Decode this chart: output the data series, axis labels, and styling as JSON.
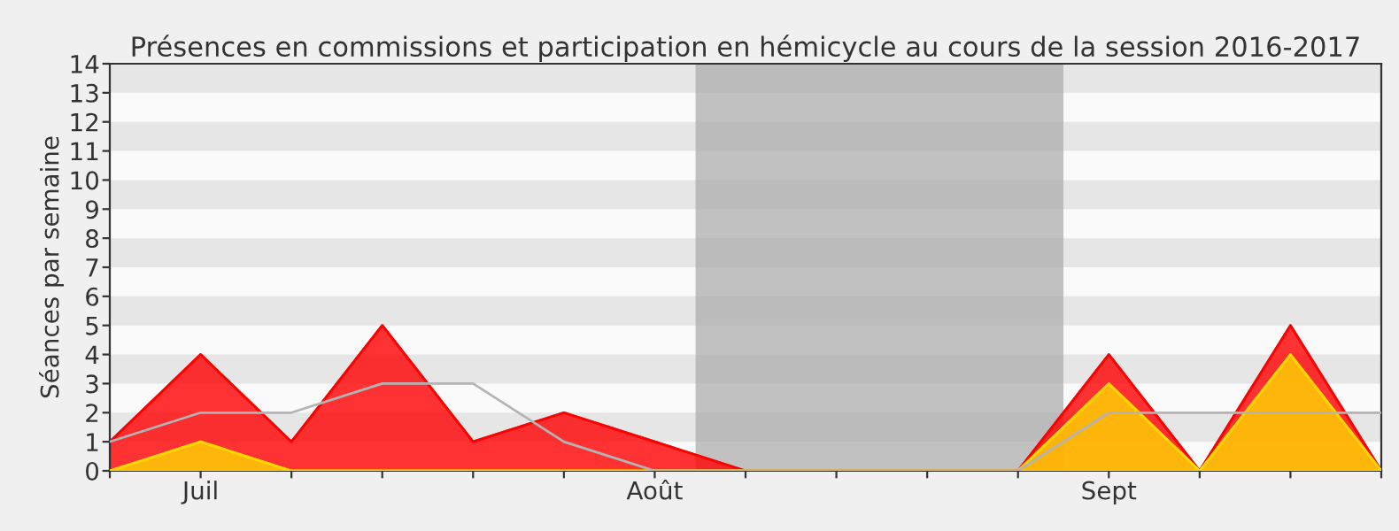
{
  "chart_data": {
    "type": "area",
    "title": "Présences en commissions et participation en hémicycle au cours de la session 2016-2017",
    "ylabel": "Séances par semaine",
    "categories": [
      null,
      "Juil",
      null,
      null,
      null,
      null,
      "Août",
      null,
      null,
      null,
      null,
      "Sept",
      null,
      null,
      null
    ],
    "ylim": [
      0,
      14
    ],
    "yticks": [
      0,
      1,
      2,
      3,
      4,
      5,
      6,
      7,
      8,
      9,
      10,
      11,
      12,
      13,
      14
    ],
    "series": [
      {
        "color": "#ff0000",
        "values": [
          1,
          4,
          1,
          5,
          1,
          2,
          1,
          0,
          0,
          0,
          0,
          4,
          0,
          5,
          0
        ]
      },
      {
        "color": "#ffd700",
        "values": [
          0,
          1,
          0,
          0,
          0,
          0,
          0,
          0,
          0,
          0,
          0,
          3,
          0,
          4,
          0
        ]
      },
      {
        "type": "line",
        "color": "#b4b4b4",
        "values": [
          1,
          2,
          2,
          3,
          3,
          1,
          0,
          0,
          0,
          0,
          0,
          2,
          2,
          2,
          2
        ]
      }
    ]
  }
}
